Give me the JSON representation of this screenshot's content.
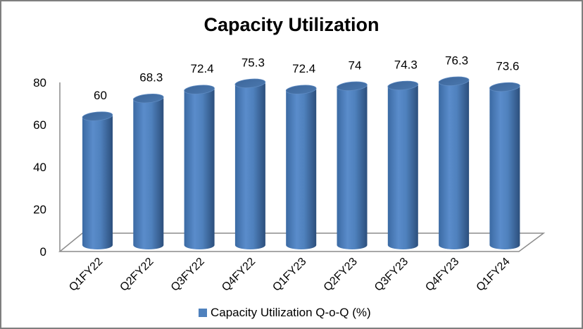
{
  "chart_data": {
    "type": "bar",
    "title": "Capacity Utilization",
    "categories": [
      "Q1FY22",
      "Q2FY22",
      "Q3FY22",
      "Q4FY22",
      "Q1FY23",
      "Q2FY23",
      "Q3FY23",
      "Q4FY23",
      "Q1FY24"
    ],
    "series": [
      {
        "name": "Capacity Utilization Q-o-Q (%)",
        "values": [
          60,
          68.3,
          72.4,
          75.3,
          72.4,
          74,
          74.3,
          76.3,
          73.6
        ],
        "color": "#4f81bd"
      }
    ],
    "data_labels": [
      "60",
      "68.3",
      "72.4",
      "75.3",
      "72.4",
      "74",
      "74.3",
      "76.3",
      "73.6"
    ],
    "y_ticks": [
      "0",
      "20",
      "40",
      "60",
      "80"
    ],
    "ylim": [
      0,
      80
    ],
    "xlabel": "",
    "ylabel": "",
    "grid": false,
    "legend_position": "bottom",
    "style": "3d-cylinder"
  }
}
